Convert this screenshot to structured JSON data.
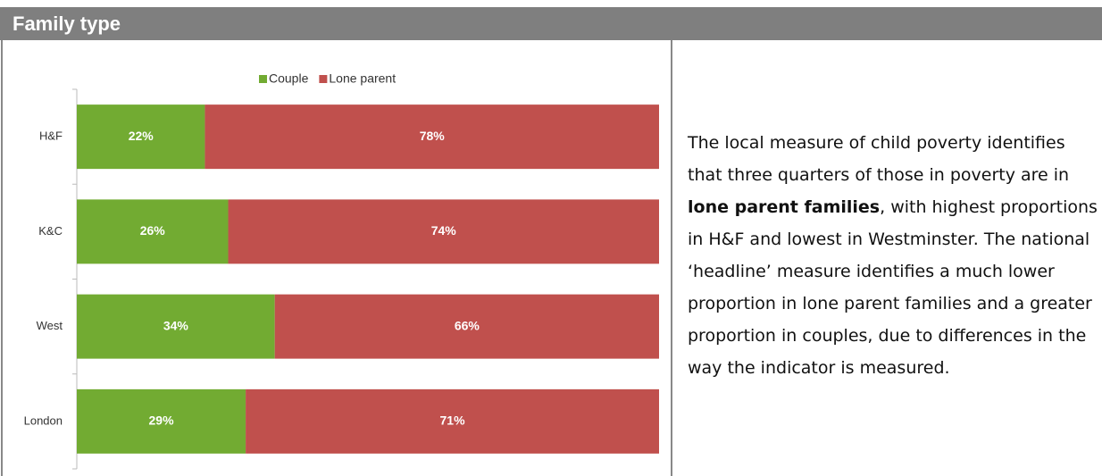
{
  "header": {
    "title": "Family type"
  },
  "chart_data": {
    "type": "stacked-bar",
    "orientation": "horizontal",
    "categories": [
      "H&F",
      "K&C",
      "West",
      "London"
    ],
    "series": [
      {
        "name": "Couple",
        "color": "#72ab32",
        "values": [
          22,
          26,
          34,
          29
        ],
        "value_labels": [
          "22%",
          "26%",
          "34%",
          "29%"
        ]
      },
      {
        "name": "Lone parent",
        "color": "#c0504d",
        "values": [
          78,
          74,
          66,
          71
        ],
        "value_labels": [
          "78%",
          "74%",
          "66%",
          "71%"
        ]
      }
    ],
    "xlim": [
      0,
      100
    ],
    "legend": "top"
  },
  "text": {
    "parts": [
      "The local measure of child poverty identifies that three quarters of those in poverty are in ",
      "lone parent families",
      ", with highest proportions in H&F and lowest in Westminster. The national ‘headline’ measure identifies a much lower proportion in lone parent families and a greater proportion in couples, due to differences in the way the indicator is measured."
    ]
  }
}
